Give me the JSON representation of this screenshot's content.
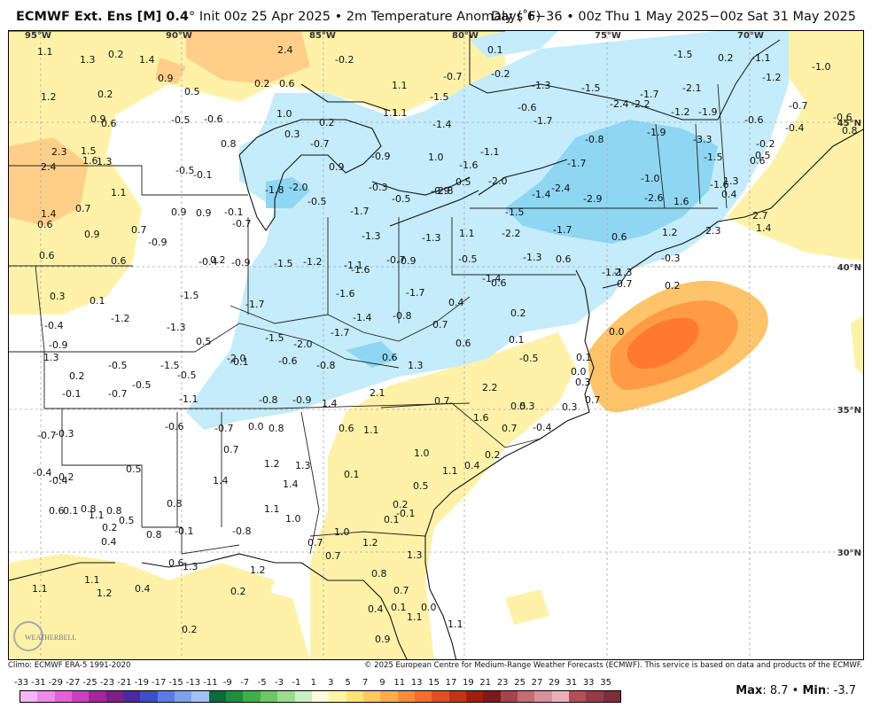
{
  "header": {
    "title_model": "ECMWF Ext. Ens [M] 0.4",
    "title_rest": "° Init 00z 25 Apr 2025 • 2m Temperature Anomaly (˚F)",
    "title_right": "Days 6−36 • 00z Thu 1 May 2025−00z Sat 31 May 2025"
  },
  "map": {
    "lon_labels": [
      "95°W",
      "90°W",
      "85°W",
      "80°W",
      "75°W",
      "70°W"
    ],
    "lat_labels": [
      "45°N",
      "40°N",
      "35°N",
      "30°N"
    ],
    "values": [
      "1.1",
      "1.3",
      "0.2",
      "1.4",
      "2.4",
      "-0.2",
      "0.1",
      "-0.2",
      "-1.5",
      "0.2",
      "-1.1",
      "-1.0",
      "1.1",
      "1.1",
      "0.9",
      "-1.2",
      "-0.7",
      "1.2",
      "0.2",
      "0.5",
      "0.2",
      "0.6",
      "1.1",
      "-0.7",
      "-1.3",
      "-1.5",
      "-1.7",
      "-2.1",
      "1.0",
      "-0.6",
      "-1.7",
      "-2.4",
      "-2.2",
      "-1.2",
      "-1.9",
      "-0.6",
      "-0.4",
      "0.9",
      "0.6",
      "-0.5",
      "-0.6",
      "0.3",
      "0.2",
      "-0.7",
      "0.8",
      "-1.5",
      "-1.4",
      "-0.8",
      "-1.9",
      "-3.3",
      "-0.2",
      "2.3",
      "1.5",
      "1.6",
      "1.3",
      "-0.6",
      "0.8",
      "1.0",
      "-0.9",
      "-0.3",
      "-1.6",
      "-1.1",
      "-1.7",
      "-1.5",
      "0.6",
      "0.5",
      "2.4",
      "-0.5",
      "-0.1",
      "-1.8",
      "-2.0",
      "-0.5",
      "0.9",
      "-0.9",
      "0.5",
      "-2.0",
      "-1.4",
      "-2.4",
      "-1.0",
      "1.3",
      "-1.6",
      "1.1",
      "0.4",
      "-0.5",
      "-2.8",
      "-2.9",
      "-2.6",
      "1.6",
      "1.4",
      "0.7",
      "0.9",
      "0.9",
      "-0.1",
      "-1.7",
      "-1.5",
      "-2.2",
      "-1.7",
      "0.6",
      "1.2",
      "2.3",
      "2.7",
      "1.4",
      "0.6",
      "0.9",
      "0.7",
      "-0.9",
      "-0.7",
      "-1.3",
      "-1.3",
      "1.1",
      "0.6",
      "0.6",
      "0.2",
      "-0.4",
      "-0.9",
      "-1.5",
      "-1.2",
      "-1.1",
      "-1.6",
      "-0.7",
      "-0.5",
      "0.6",
      "-0.3",
      "-1.3",
      "-0.9",
      "-1.3",
      "-1.2",
      "-1.4",
      "0.6",
      "0.3",
      "0.1",
      "-1.2",
      "-1.5",
      "-1.7",
      "-1.6",
      "-1.7",
      "0.4",
      "0.7",
      "0.2",
      "0.0",
      "-0.4",
      "-1.3",
      "-1.5",
      "-2.0",
      "-1.7",
      "-1.4",
      "-0.8",
      "0.7",
      "0.2",
      "-0.9",
      "0.5",
      "0.1",
      "0.6",
      "0.0",
      "1.3",
      "0.3",
      "0.2",
      "-0.1",
      "-0.5",
      "-0.5",
      "-1.5",
      "-2.0",
      "-0.6",
      "-0.8",
      "0.6",
      "1.3",
      "-0.5",
      "0.1",
      "-0.1",
      "-0.5",
      "-0.7",
      "-1.1",
      "-0.8",
      "-0.9",
      "1.4",
      "2.1",
      "2.2",
      "0.7",
      "0.7",
      "0.5",
      "0.3",
      "-0.7",
      "-0.3",
      "-0.6",
      "-0.7",
      "0.0",
      "0.8",
      "0.6",
      "1.1",
      "1.6",
      "0.7",
      "-0.4",
      "0.3",
      "0.7",
      "1.2",
      "1.3",
      "1.0",
      "0.4",
      "0.2",
      "-0.4",
      "-0.4",
      "-0.2",
      "0.5",
      "1.4",
      "1.4",
      "0.1",
      "0.5",
      "0.8",
      "1.1",
      "1.0",
      "0.2",
      "-0.1",
      "0.1",
      "0.8",
      "0.8",
      "1.1",
      "0.2",
      "0.5",
      "0.6",
      "0.1",
      "-0.1",
      "0.8",
      "0.4",
      "-0.8",
      "0.7",
      "1.0",
      "1.2",
      "1.3",
      "0.7",
      "1.1",
      "0.8",
      "0.7",
      "0.6",
      "1.3",
      "1.2",
      "1.1",
      "1.1",
      "1.2",
      "0.4",
      "0.2",
      "0.1",
      "0.0",
      "1.1",
      "1.1",
      "0.4",
      "0.2",
      "0.9"
    ]
  },
  "footer": {
    "climo": "Climo: ECMWF ERA-5 1991-2020",
    "copyright": "© 2025 European Centre for Medium-Range Weather Forecasts (ECMWF). This service is based on data and products of the ECMWF.",
    "logo_text": "WEATHERBELL"
  },
  "scale": {
    "labels": [
      "-33",
      "-31",
      "-29",
      "-27",
      "-25",
      "-23",
      "-21",
      "-19",
      "-17",
      "-15",
      "-13",
      "-11",
      "-9",
      "-7",
      "-5",
      "-3",
      "-1",
      "1",
      "3",
      "5",
      "7",
      "9",
      "11",
      "13",
      "15",
      "17",
      "19",
      "21",
      "23",
      "25",
      "27",
      "29",
      "31",
      "33",
      "35"
    ],
    "colors": [
      "#f7b6f5",
      "#ee8ae8",
      "#e061da",
      "#cc3ec6",
      "#a8249f",
      "#7d1f86",
      "#4b2aa0",
      "#3d4fc4",
      "#5c7ce0",
      "#7fa0ea",
      "#a6bff2",
      "#0b6b3a",
      "#1f8e3f",
      "#3eb04a",
      "#6cc763",
      "#9adb8e",
      "#c9efc4",
      "#fffbdc",
      "#fff3a6",
      "#ffe37a",
      "#ffc960",
      "#ffac4d",
      "#ff8c3c",
      "#f86a2f",
      "#e84a22",
      "#c83116",
      "#a11d10",
      "#7b1b1b",
      "#a5444c",
      "#c76b74",
      "#d99098",
      "#e8b0b6",
      "#b24e58",
      "#953b48",
      "#7e2d3a"
    ],
    "max_label": "Max",
    "max_value": "8.7",
    "min_label": "Min",
    "min_value": "-3.7"
  }
}
